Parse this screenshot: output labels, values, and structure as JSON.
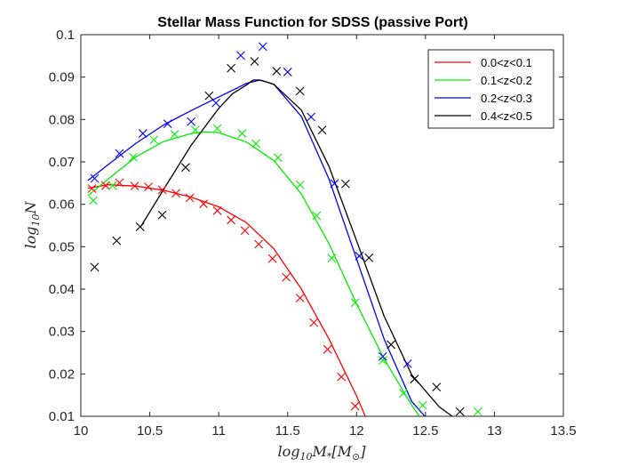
{
  "chart_data": {
    "type": "line",
    "title": "Stellar Mass Function for SDSS (passive Port)",
    "xlabel": "log10M*[M⊙]",
    "ylabel": "log10N",
    "xlim": [
      10,
      13.5
    ],
    "ylim": [
      0.01,
      0.1
    ],
    "xticks": [
      "10",
      "10.5",
      "11",
      "11.5",
      "12",
      "12.5",
      "13",
      "13.5"
    ],
    "yticks": [
      "0.01",
      "0.02",
      "0.03",
      "0.04",
      "0.05",
      "0.06",
      "0.07",
      "0.08",
      "0.09",
      "0.1"
    ],
    "legend_position": "top-right",
    "grid": false,
    "series": [
      {
        "name": "0.0<z<0.1",
        "color": "#ff0000",
        "points_x": [
          10.08,
          10.18,
          10.28,
          10.39,
          10.49,
          10.59,
          10.69,
          10.79,
          10.89,
          10.99,
          11.09,
          11.19,
          11.29,
          11.39,
          11.49,
          11.59,
          11.69,
          11.79,
          11.89,
          11.99
        ],
        "points_y": [
          0.0637,
          0.0644,
          0.0651,
          0.0643,
          0.0641,
          0.0634,
          0.0626,
          0.0615,
          0.0601,
          0.0585,
          0.0563,
          0.0538,
          0.0506,
          0.0472,
          0.0428,
          0.0379,
          0.0321,
          0.0258,
          0.0193,
          0.0124
        ],
        "curve_x": [
          10.05,
          10.2,
          10.4,
          10.6,
          10.8,
          11.0,
          11.2,
          11.4,
          11.6,
          11.8,
          11.9,
          12.0,
          12.1,
          12.13
        ],
        "curve_y": [
          0.0638,
          0.0646,
          0.0643,
          0.0633,
          0.0617,
          0.0594,
          0.0557,
          0.0495,
          0.04,
          0.0282,
          0.0215,
          0.0148,
          0.0072,
          0.005
        ]
      },
      {
        "name": "0.1<z<0.2",
        "color": "#00ee00",
        "points_x": [
          10.09,
          10.23,
          10.38,
          10.53,
          10.68,
          10.83,
          10.99,
          11.17,
          11.27,
          11.43,
          11.59,
          11.71,
          11.82,
          11.99,
          12.19,
          12.34,
          12.48,
          12.88
        ],
        "points_y": [
          0.0609,
          0.0644,
          0.0711,
          0.0752,
          0.0765,
          0.0775,
          0.0779,
          0.0767,
          0.0743,
          0.071,
          0.0646,
          0.0573,
          0.0473,
          0.0368,
          0.0232,
          0.0154,
          0.0126,
          0.0111
        ],
        "curve_x": [
          10.05,
          10.2,
          10.4,
          10.6,
          10.8,
          10.9,
          11.0,
          11.2,
          11.4,
          11.6,
          11.8,
          12.0,
          12.2,
          12.4,
          12.5
        ],
        "curve_y": [
          0.062,
          0.066,
          0.0712,
          0.0748,
          0.0767,
          0.0771,
          0.0769,
          0.0747,
          0.0703,
          0.0624,
          0.0507,
          0.0365,
          0.0235,
          0.0126,
          0.008
        ]
      },
      {
        "name": "0.2<z<0.3",
        "color": "#0000ff",
        "points_x": [
          10.1,
          10.28,
          10.45,
          10.63,
          10.8,
          10.98,
          11.16,
          11.32,
          11.5,
          11.67,
          11.84,
          12.02,
          12.19,
          12.37
        ],
        "points_y": [
          0.0661,
          0.072,
          0.0767,
          0.079,
          0.0795,
          0.0839,
          0.0951,
          0.0972,
          0.0912,
          0.0806,
          0.0649,
          0.0478,
          0.0241,
          0.0224
        ],
        "curve_x": [
          10.05,
          10.2,
          10.4,
          10.6,
          10.8,
          11.0,
          11.2,
          11.3,
          11.4,
          11.6,
          11.8,
          12.0,
          12.2,
          12.4,
          12.55
        ],
        "curve_y": [
          0.0656,
          0.0694,
          0.0744,
          0.0787,
          0.0821,
          0.0853,
          0.0885,
          0.0893,
          0.0883,
          0.0807,
          0.0659,
          0.0471,
          0.0282,
          0.0135,
          0.008
        ]
      },
      {
        "name": "0.4<z<0.5",
        "color": "#000000",
        "points_x": [
          10.1,
          10.26,
          10.43,
          10.59,
          10.76,
          10.93,
          11.09,
          11.26,
          11.42,
          11.59,
          11.75,
          11.92,
          12.09,
          12.25,
          12.42,
          12.58,
          12.75
        ],
        "points_y": [
          0.0452,
          0.0514,
          0.0547,
          0.0575,
          0.0687,
          0.0856,
          0.0921,
          0.0937,
          0.0914,
          0.0867,
          0.0775,
          0.0648,
          0.0474,
          0.0269,
          0.0188,
          0.0169,
          0.0111
        ],
        "curve_x": [
          10.43,
          10.6,
          10.8,
          11.0,
          11.1,
          11.2,
          11.25,
          11.3,
          11.4,
          11.6,
          11.8,
          12.0,
          12.2,
          12.4,
          12.6,
          12.75,
          12.8
        ],
        "curve_y": [
          0.0545,
          0.0635,
          0.0739,
          0.0826,
          0.0861,
          0.0881,
          0.0893,
          0.0893,
          0.0883,
          0.0822,
          0.0689,
          0.0514,
          0.0336,
          0.0198,
          0.0122,
          0.0087,
          0.008
        ]
      }
    ]
  }
}
